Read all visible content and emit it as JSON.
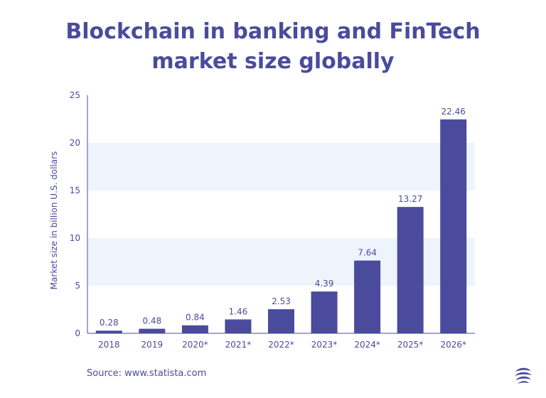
{
  "chart_data": {
    "type": "bar",
    "title_lines": [
      "Blockchain in banking and FinTech",
      "market size globally"
    ],
    "ylabel": "Market size in billion U.S. dollars",
    "xlabel": "",
    "categories": [
      "2018",
      "2019",
      "2020*",
      "2021*",
      "2022*",
      "2023*",
      "2024*",
      "2025*",
      "2026*"
    ],
    "values": [
      0.28,
      0.48,
      0.84,
      1.46,
      2.53,
      4.39,
      7.64,
      13.27,
      22.46
    ],
    "value_labels": [
      "0.28",
      "0.48",
      "0.84",
      "1.46",
      "2.53",
      "4.39",
      "7.64",
      "13.27",
      "22.46"
    ],
    "ylim": [
      0,
      25
    ],
    "yticks": [
      "0",
      "5",
      "10",
      "15",
      "20",
      "25"
    ],
    "grid": "alternating horizontal bands",
    "legend": "none"
  },
  "source": "Source: www.statista.com",
  "colors": {
    "bar": "#4a4b9c",
    "text": "#4a4b9c",
    "band": "#eef4fc",
    "axis": "#4a4b9c"
  },
  "logo_icon": "statista-logo-icon"
}
